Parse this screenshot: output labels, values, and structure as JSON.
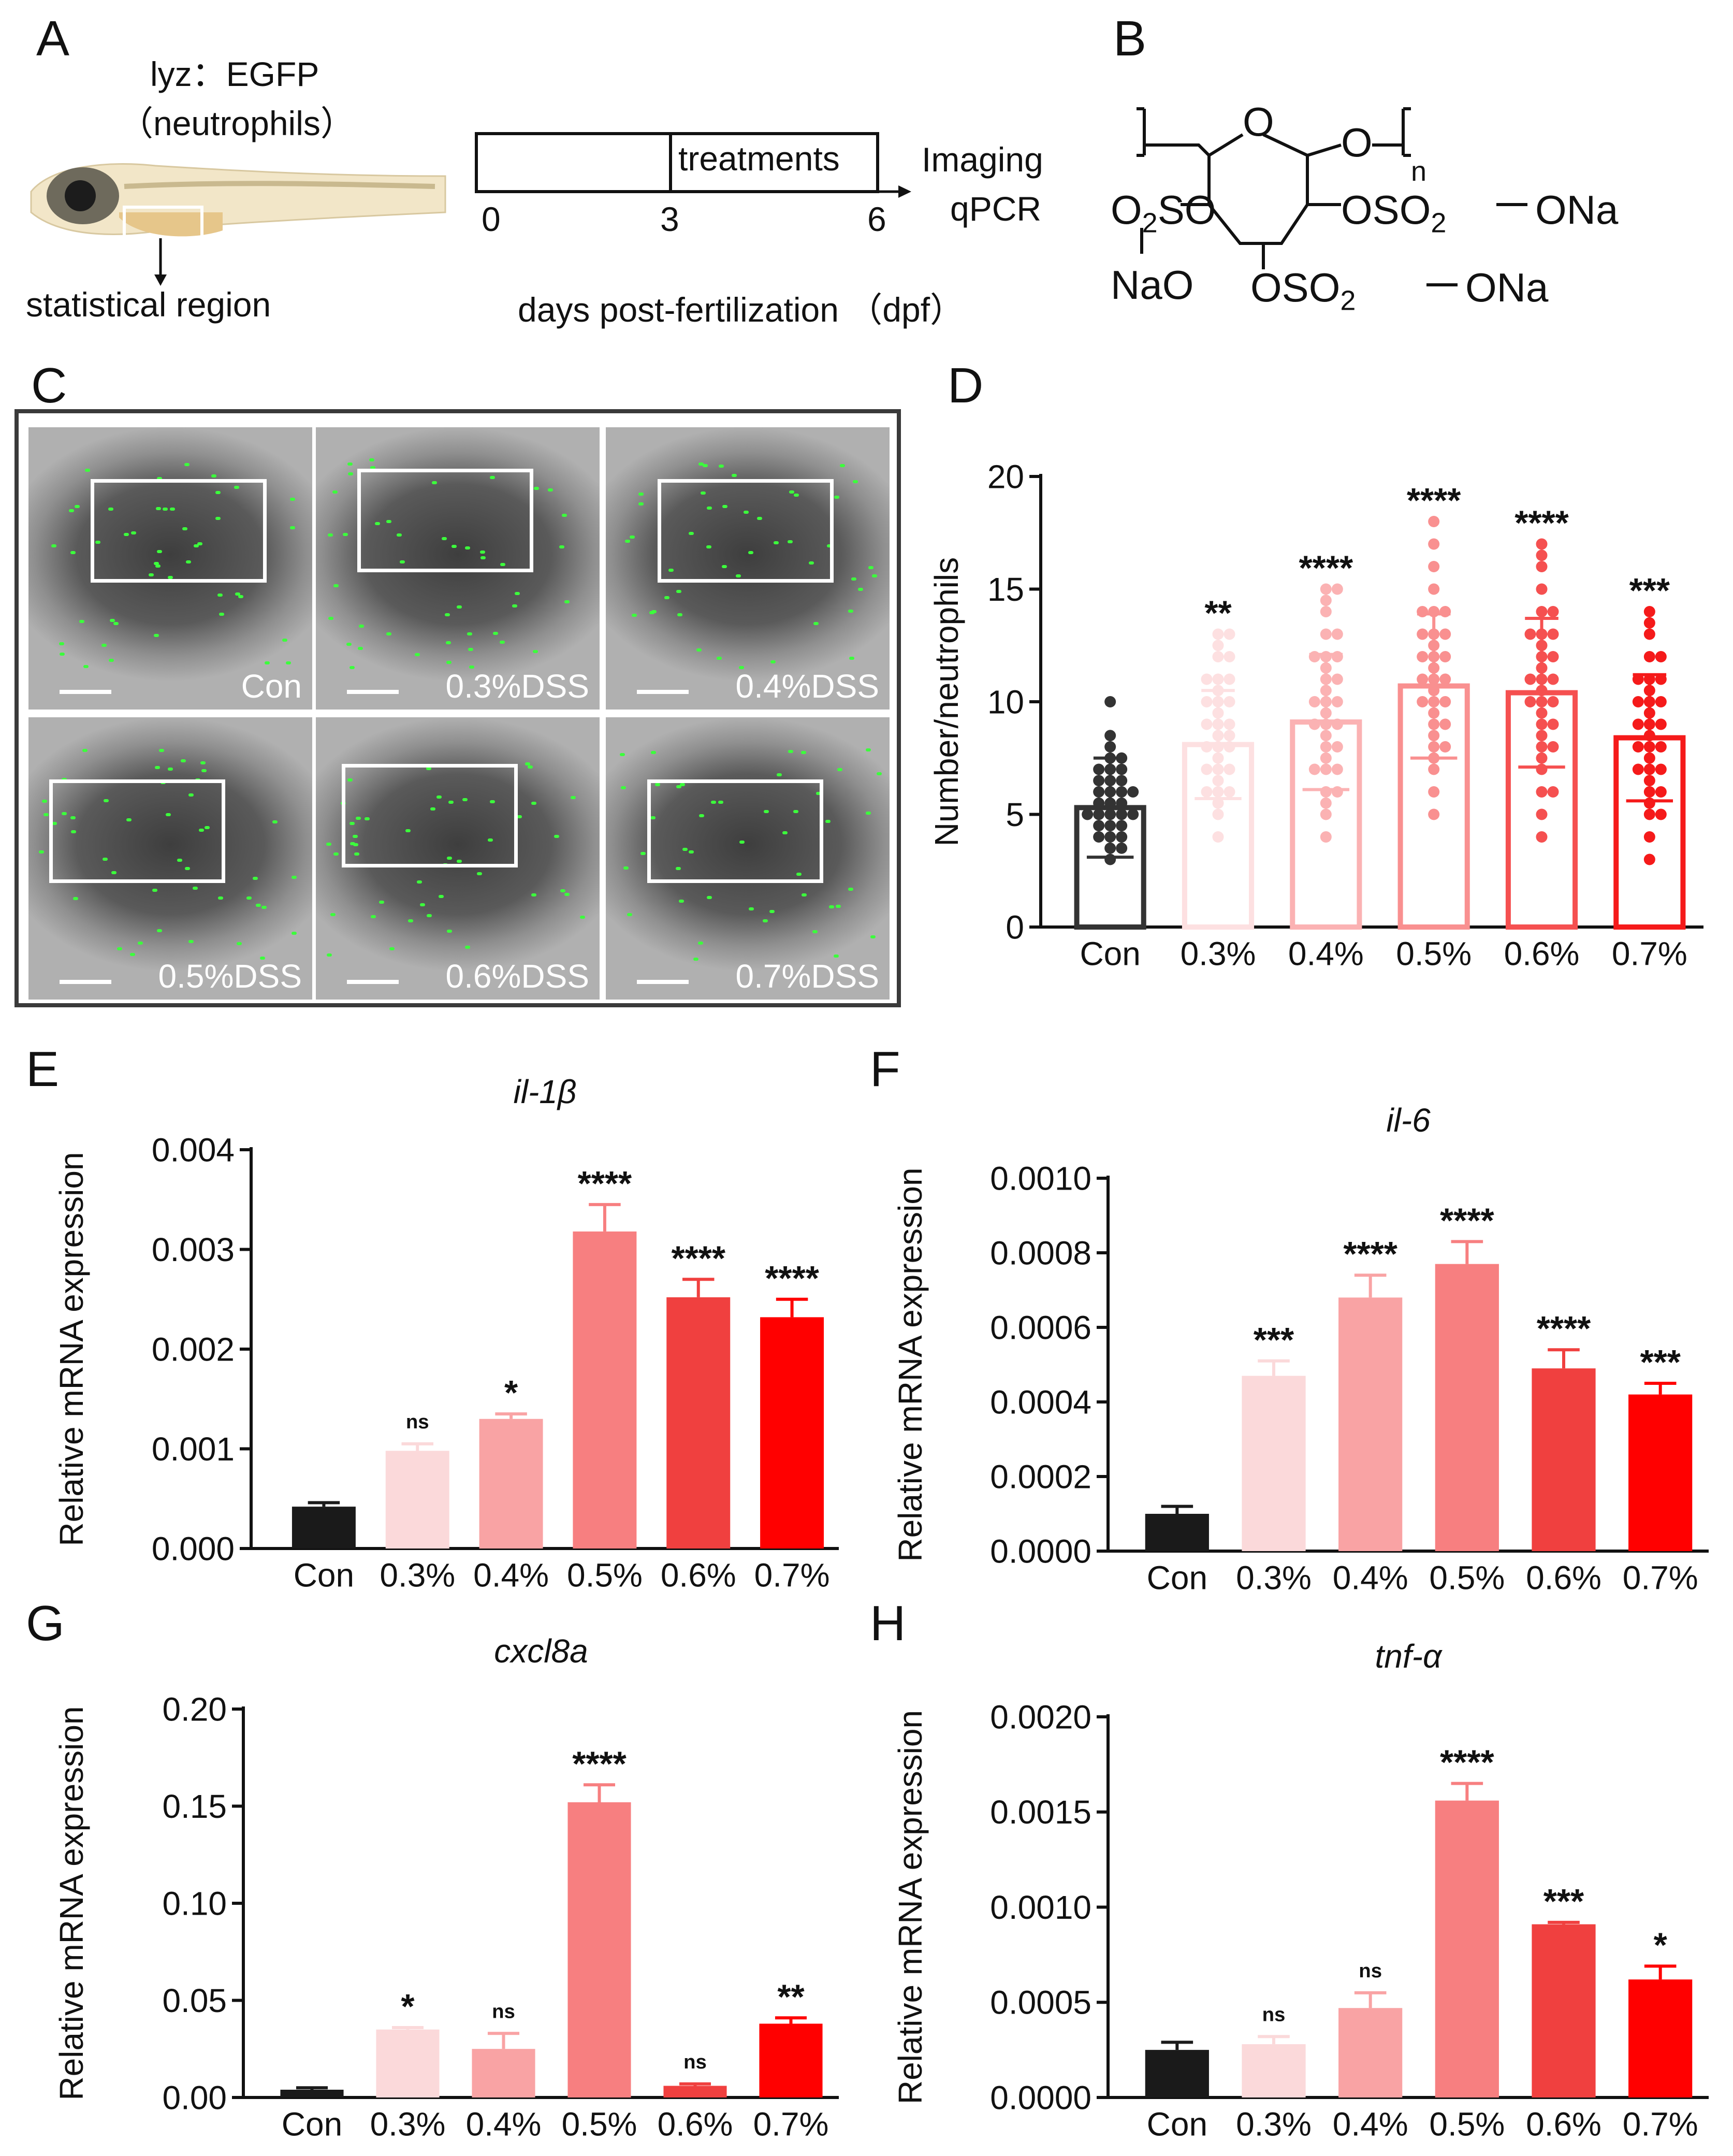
{
  "panels": {
    "A": "A",
    "B": "B",
    "C": "C",
    "D": "D",
    "E": "E",
    "F": "F",
    "G": "G",
    "H": "H"
  },
  "panelA": {
    "reporter": "lyz：EGFP",
    "reporter_sub": "（neutrophils）",
    "region_label": "statistical region",
    "timeline_box": "treatments",
    "ticks": [
      "0",
      "3",
      "6"
    ],
    "endpoint_1": "Imaging",
    "endpoint_2": "qPCR",
    "axis_label": "days post-fertilization （dpf）"
  },
  "panelB": {
    "ring_o": "O",
    "bridge_o": "O",
    "subscript_n": "n",
    "left_group": "O",
    "left_sub": "2",
    "left_group_tail": "SO",
    "left_na": "NaO",
    "right_group": "OSO",
    "right_sub": "2",
    "right_tail": "ONa",
    "bottom_group": "OSO",
    "bottom_sub": "2",
    "bottom_tail": "ONa"
  },
  "panelC": {
    "images": [
      {
        "label": "Con"
      },
      {
        "label": "0.3%DSS"
      },
      {
        "label": "0.4%DSS"
      },
      {
        "label": "0.5%DSS"
      },
      {
        "label": "0.6%DSS"
      },
      {
        "label": "0.7%DSS"
      }
    ]
  },
  "colors": {
    "bars": [
      "#1a1a1a",
      "#fbd9da",
      "#f9a3a4",
      "#f77f80",
      "#f0403f",
      "#ff0000"
    ],
    "scatter_bars": [
      "#333333",
      "#fde0e1",
      "#fbb2b3",
      "#f99090",
      "#f55050",
      "#f51a1a"
    ]
  },
  "chart_data": [
    {
      "id": "D",
      "type": "bar",
      "title": "",
      "ylabel": "Number/neutrophils",
      "categories": [
        "Con",
        "0.3%",
        "0.4%",
        "0.5%",
        "0.6%",
        "0.7%"
      ],
      "values": [
        5.3,
        8.1,
        9.1,
        10.7,
        10.4,
        8.4
      ],
      "errors": [
        2.2,
        2.4,
        3.0,
        3.2,
        3.3,
        2.8
      ],
      "significance": [
        "",
        "**",
        "****",
        "****",
        "****",
        "***"
      ],
      "ylim": [
        0,
        20
      ],
      "yticks": [
        "0",
        "5",
        "10",
        "15",
        "20"
      ],
      "points": [
        [
          3.5,
          4,
          4,
          4.5,
          4.5,
          5,
          5,
          5,
          5,
          5.5,
          5.5,
          6,
          6,
          6,
          6.5,
          6.5,
          7,
          7,
          7.5,
          3.5,
          4,
          4.5,
          5,
          5.5,
          6,
          6.5,
          7,
          7.5,
          8,
          10,
          8.5,
          3
        ],
        [
          4,
          5,
          5.5,
          6,
          6,
          6.5,
          7,
          7,
          7.5,
          8,
          8,
          8.5,
          8.5,
          9,
          9,
          9.5,
          10,
          10,
          10.5,
          11,
          11,
          12,
          12.5,
          13,
          13,
          6,
          7,
          8,
          9,
          10,
          11,
          12
        ],
        [
          4,
          5,
          5.5,
          6,
          7,
          7,
          7.5,
          8,
          8.5,
          9,
          9,
          9.5,
          10,
          10,
          10.5,
          11,
          11,
          11.5,
          12,
          12,
          13,
          13,
          14,
          14.5,
          15,
          15,
          6,
          7,
          8,
          9,
          10,
          12
        ],
        [
          5,
          6,
          7,
          7.5,
          8,
          8.5,
          9,
          9.5,
          10,
          10,
          10.5,
          11,
          11,
          11.5,
          12,
          12,
          12.5,
          13,
          13,
          14,
          14,
          15,
          16,
          17,
          18,
          8,
          9,
          10,
          11,
          12,
          13,
          14
        ],
        [
          4,
          5,
          6,
          7,
          7.5,
          8,
          8.5,
          9,
          9.5,
          10,
          10,
          10.5,
          11,
          11,
          11.5,
          12,
          12,
          12.5,
          13,
          13,
          14,
          14,
          15,
          16,
          16.5,
          17,
          6,
          8,
          9,
          10,
          11,
          13
        ],
        [
          3,
          4,
          5,
          5.5,
          6,
          6.5,
          7,
          7,
          7.5,
          8,
          8,
          8.5,
          9,
          9,
          9.5,
          10,
          10,
          10.5,
          11,
          11,
          12,
          12,
          13,
          13.5,
          14,
          5,
          6,
          7,
          8,
          9,
          10,
          11
        ]
      ]
    },
    {
      "id": "E",
      "type": "bar",
      "title": "il-1β",
      "ylabel": "Relative mRNA expression",
      "categories": [
        "Con",
        "0.3%",
        "0.4%",
        "0.5%",
        "0.6%",
        "0.7%"
      ],
      "values": [
        0.00042,
        0.00098,
        0.0013,
        0.00318,
        0.00252,
        0.00232
      ],
      "errors": [
        4e-05,
        7e-05,
        5e-05,
        0.00027,
        0.00018,
        0.00018
      ],
      "significance": [
        "",
        "ns",
        "*",
        "****",
        "****",
        "****"
      ],
      "ylim": [
        0,
        0.004
      ],
      "yticks": [
        "0.000",
        "0.001",
        "0.002",
        "0.003",
        "0.004"
      ]
    },
    {
      "id": "F",
      "type": "bar",
      "title": "il-6",
      "ylabel": "Relative mRNA expression",
      "categories": [
        "Con",
        "0.3%",
        "0.4%",
        "0.5%",
        "0.6%",
        "0.7%"
      ],
      "values": [
        0.0001,
        0.00047,
        0.00068,
        0.00077,
        0.00049,
        0.00042
      ],
      "errors": [
        2e-05,
        4e-05,
        6e-05,
        6e-05,
        5e-05,
        3e-05
      ],
      "significance": [
        "",
        "***",
        "****",
        "****",
        "****",
        "***"
      ],
      "ylim": [
        0,
        0.001
      ],
      "yticks": [
        "0.0000",
        "0.0002",
        "0.0004",
        "0.0006",
        "0.0008",
        "0.0010"
      ]
    },
    {
      "id": "G",
      "type": "bar",
      "title": "cxcl8a",
      "ylabel": "Relative mRNA expression",
      "categories": [
        "Con",
        "0.3%",
        "0.4%",
        "0.5%",
        "0.6%",
        "0.7%"
      ],
      "values": [
        0.004,
        0.035,
        0.025,
        0.152,
        0.006,
        0.038
      ],
      "errors": [
        0.001,
        0.001,
        0.008,
        0.009,
        0.001,
        0.003
      ],
      "significance": [
        "",
        "*",
        "ns",
        "****",
        "ns",
        "**"
      ],
      "ylim": [
        0,
        0.2
      ],
      "yticks": [
        "0.00",
        "0.05",
        "0.10",
        "0.15",
        "0.20"
      ]
    },
    {
      "id": "H",
      "type": "bar",
      "title": "tnf-α",
      "ylabel": "Relative mRNA expression",
      "categories": [
        "Con",
        "0.3%",
        "0.4%",
        "0.5%",
        "0.6%",
        "0.7%"
      ],
      "values": [
        0.00025,
        0.00028,
        0.00047,
        0.00156,
        0.00091,
        0.00062
      ],
      "errors": [
        4e-05,
        4e-05,
        8e-05,
        9e-05,
        1e-05,
        7e-05
      ],
      "significance": [
        "",
        "ns",
        "ns",
        "****",
        "***",
        "*"
      ],
      "ylim": [
        0,
        0.002
      ],
      "yticks": [
        "0.0000",
        "0.0005",
        "0.0010",
        "0.0015",
        "0.0020"
      ]
    }
  ]
}
